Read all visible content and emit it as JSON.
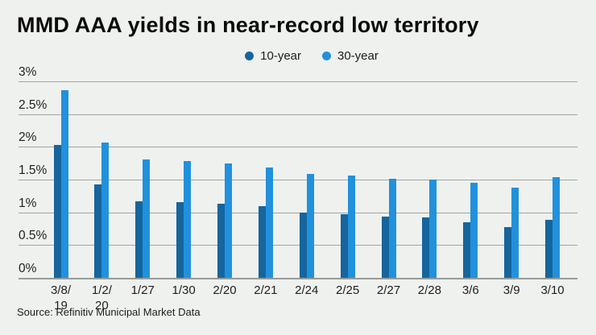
{
  "header": {
    "title": "MMD AAA yields in near-record low territory"
  },
  "legend": [
    {
      "label": "10-year",
      "color": "#16659c"
    },
    {
      "label": "30-year",
      "color": "#2191dd"
    }
  ],
  "footer": {
    "source": "Source: Refinitiv Municipal Market Data"
  },
  "colors": {
    "background": "#eff1ee",
    "gridline": "#a2a4a1",
    "series_10yr": "#16659c",
    "series_30yr": "#2191dd"
  },
  "chart_data": {
    "type": "bar",
    "title": "MMD AAA yields in near-record low territory",
    "categories": [
      "3/8/19",
      "1/2/20",
      "1/27",
      "1/30",
      "2/20",
      "2/21",
      "2/24",
      "2/25",
      "2/27",
      "2/28",
      "3/6",
      "3/9",
      "3/10"
    ],
    "series": [
      {
        "name": "10-year",
        "color": "#16659c",
        "values": [
          2.03,
          1.43,
          1.17,
          1.15,
          1.13,
          1.09,
          1.0,
          0.97,
          0.93,
          0.92,
          0.85,
          0.78,
          0.89
        ]
      },
      {
        "name": "30-year",
        "color": "#2191dd",
        "values": [
          2.86,
          2.06,
          1.81,
          1.78,
          1.74,
          1.68,
          1.59,
          1.56,
          1.51,
          1.5,
          1.45,
          1.38,
          1.53
        ]
      }
    ],
    "xlabel": "",
    "ylabel": "",
    "ylim": [
      0,
      3
    ],
    "yticks": [
      0,
      0.5,
      1,
      1.5,
      2,
      2.5,
      3
    ],
    "ytick_labels": [
      "0%",
      "0.5%",
      "1%",
      "1.5%",
      "2%",
      "2.5%",
      "3%"
    ],
    "xtick_lines": [
      [
        "3/8/",
        "19"
      ],
      [
        "1/2/",
        "20"
      ],
      [
        "1/27"
      ],
      [
        "1/30"
      ],
      [
        "2/20"
      ],
      [
        "2/21"
      ],
      [
        "2/24"
      ],
      [
        "2/25"
      ],
      [
        "2/27"
      ],
      [
        "2/28"
      ],
      [
        "3/6"
      ],
      [
        "3/9"
      ],
      [
        "3/10"
      ]
    ],
    "grid": true,
    "legend_position": "top-center",
    "source": "Source: Refinitiv Municipal Market Data"
  }
}
